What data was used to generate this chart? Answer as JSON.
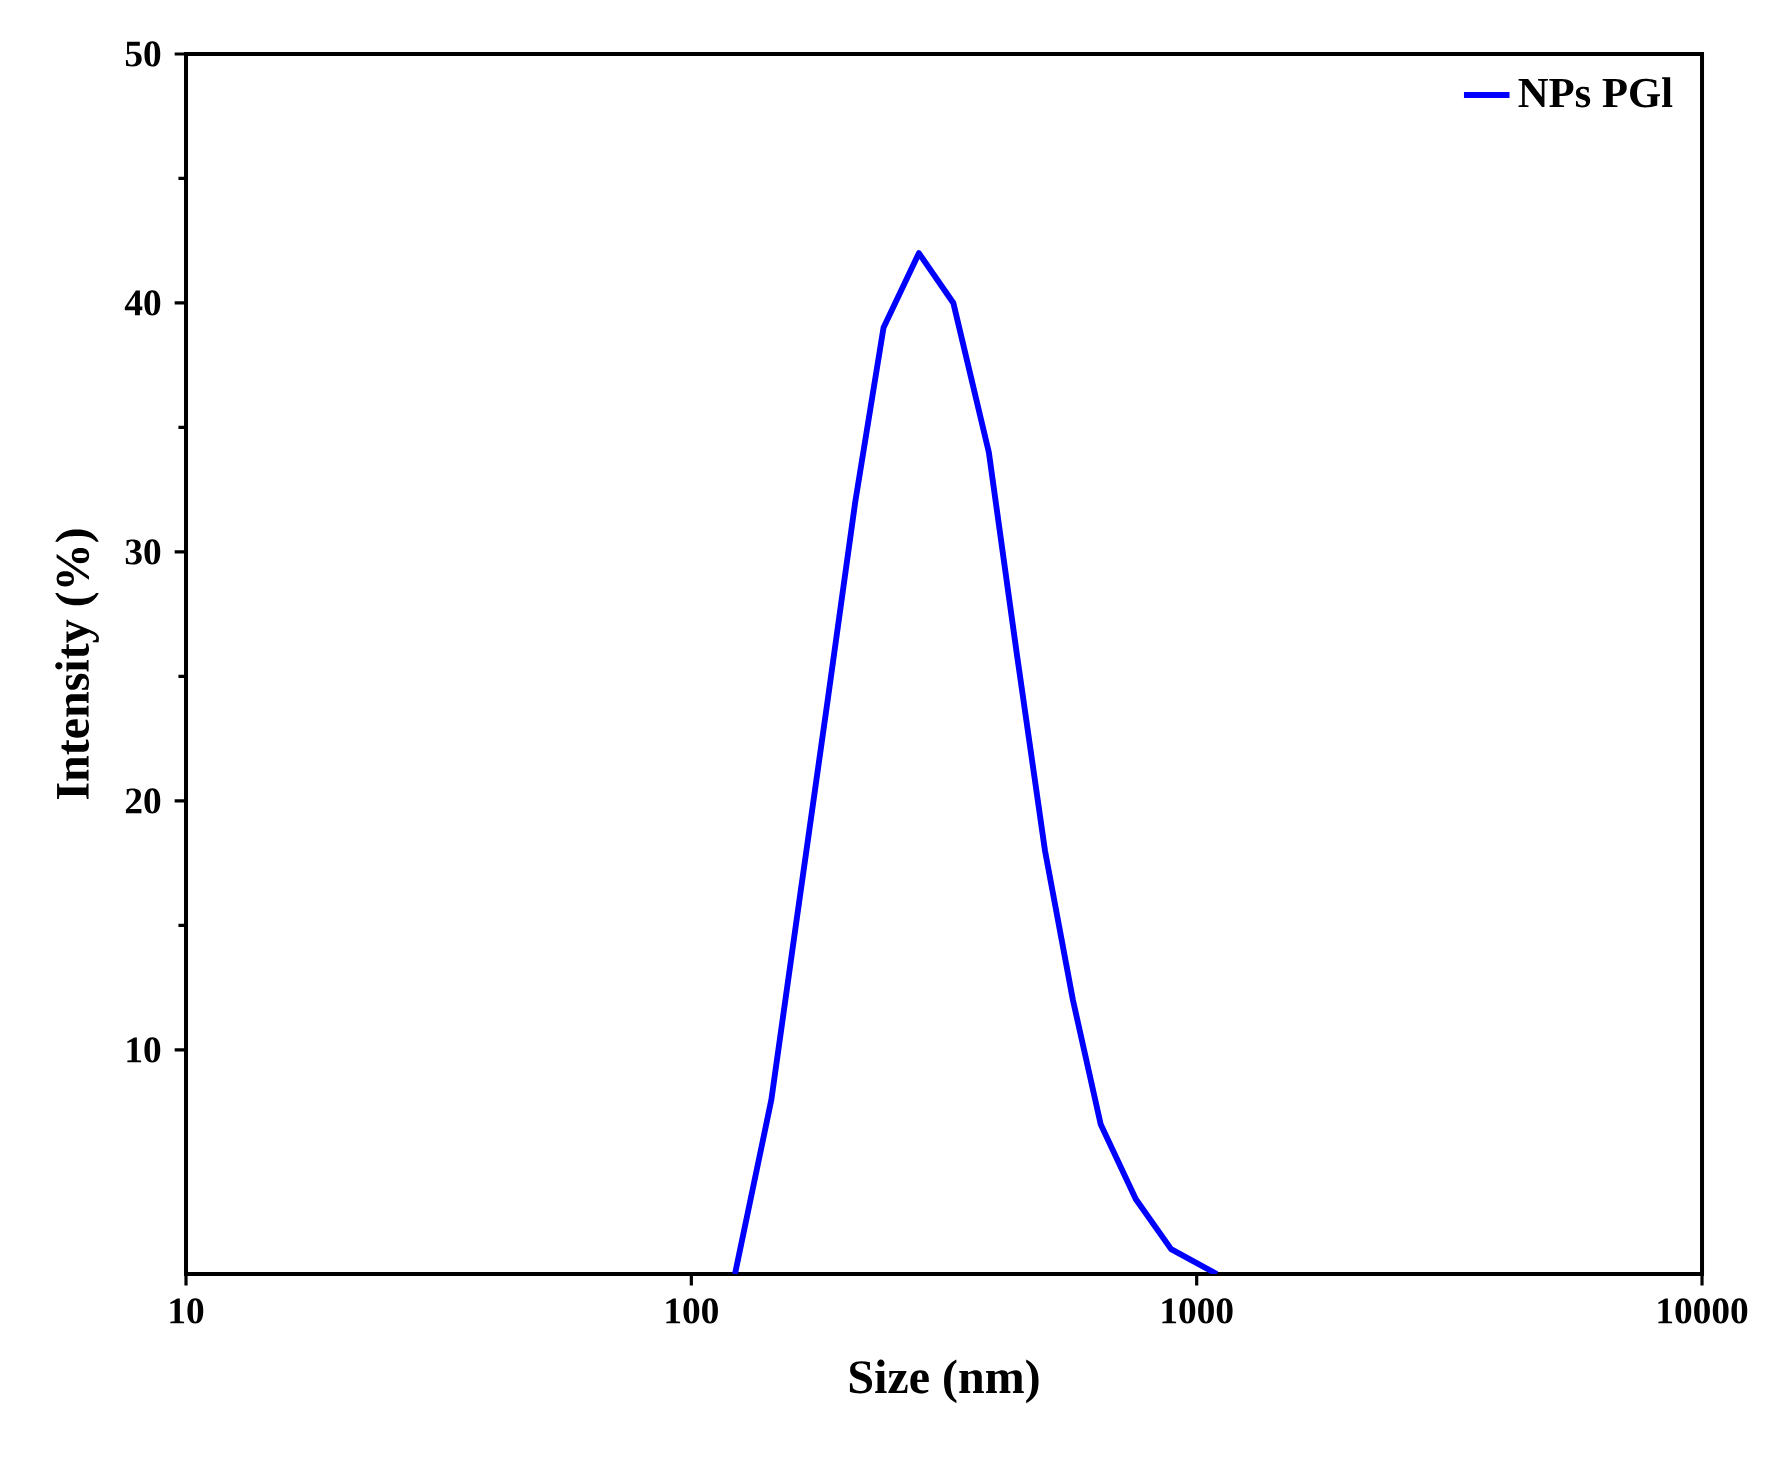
{
  "chart_data": {
    "type": "line",
    "xlabel": "Size (nm)",
    "ylabel": "Intensity (%)",
    "log": "x",
    "xlim": [
      10,
      10000
    ],
    "xticks": [
      10,
      100,
      1000,
      10000
    ],
    "ylim": [
      1,
      50
    ],
    "yticks": [
      10,
      20,
      30,
      40,
      50
    ],
    "legend": "top right",
    "marker": "none",
    "line_style": "solid",
    "series": [
      {
        "name": "NPs PGl",
        "color": "#0000ff",
        "x": [
          122,
          144,
          161,
          186,
          211,
          240,
          282,
          330,
          388,
          440,
          501,
          569,
          646,
          758,
          890,
          1096
        ],
        "values": [
          1,
          8,
          15,
          24,
          32,
          39,
          42,
          40,
          34,
          26,
          18,
          12,
          7,
          4,
          2,
          1
        ]
      }
    ]
  }
}
